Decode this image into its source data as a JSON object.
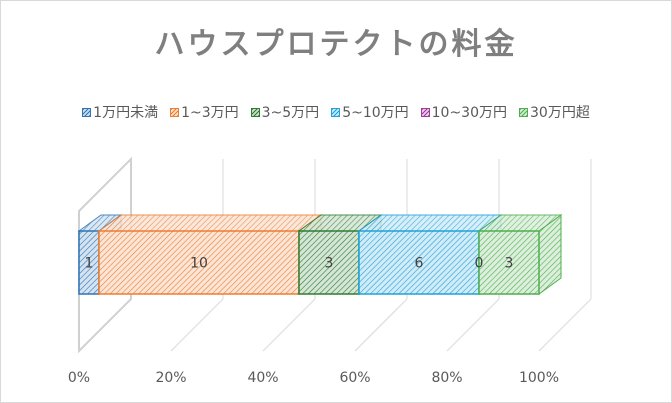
{
  "chart_data": {
    "type": "bar",
    "orientation": "horizontal",
    "stacked": "percent",
    "style": "3d",
    "title": "ハウスプロテクトの料金",
    "xlabel": "",
    "ylabel": "",
    "xlim": [
      0,
      100
    ],
    "x_tick_labels": [
      "0%",
      "20%",
      "40%",
      "60%",
      "80%",
      "100%"
    ],
    "grid": true,
    "legend_position": "top",
    "categories": [
      ""
    ],
    "series": [
      {
        "name": "1万円未満",
        "values": [
          1
        ],
        "color": "#2e75b6"
      },
      {
        "name": "1~3万円",
        "values": [
          10
        ],
        "color": "#ed7d31"
      },
      {
        "name": "3~5万円",
        "values": [
          3
        ],
        "color": "#2e7d32"
      },
      {
        "name": "5~10万円",
        "values": [
          6
        ],
        "color": "#1fa2d9"
      },
      {
        "name": "10~30万円",
        "values": [
          0
        ],
        "color": "#a23b9f"
      },
      {
        "name": "30万円超",
        "values": [
          3
        ],
        "color": "#4fae4f"
      }
    ]
  }
}
